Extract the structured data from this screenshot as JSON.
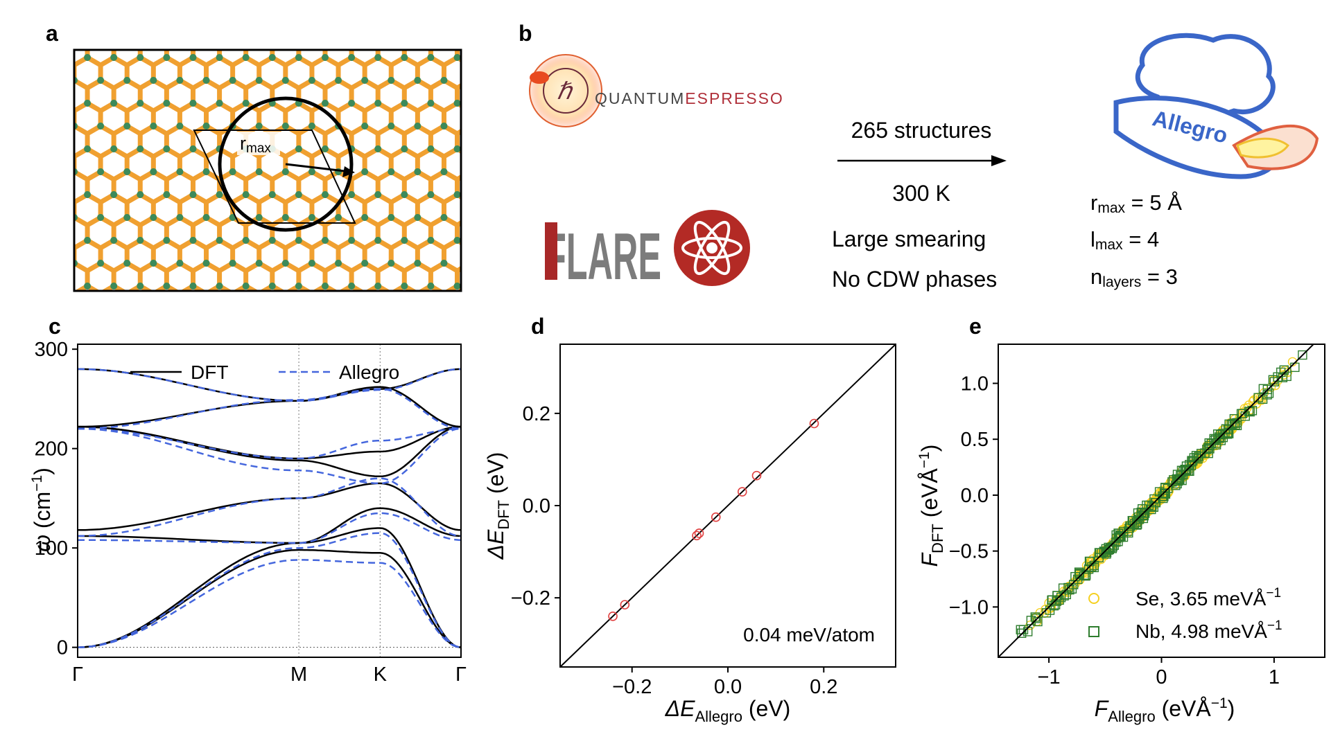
{
  "panel_labels": {
    "a": "a",
    "b": "b",
    "c": "c",
    "d": "d",
    "e": "e"
  },
  "panel_a": {
    "radius_label": "r",
    "radius_sub": "max",
    "colors": {
      "selenium": "#f0a030",
      "niobium": "#3c8a5a"
    }
  },
  "panel_b": {
    "qe_logo_text_1": "QUANTUM",
    "qe_logo_text_2": "ESPRESSO",
    "qe_logo_symbol": "ℏ",
    "flare_logo_text": "FLARE",
    "structures": "265 structures",
    "temperature": "300 K",
    "condition_1": "Large smearing",
    "condition_2": "No CDW phases",
    "allegro_logo_text": "Allegro",
    "hyper_r": {
      "sym": "r",
      "sub": "max",
      "val": " = 5 Å"
    },
    "hyper_l": {
      "sym": "l",
      "sub": "max",
      "val": " = 4"
    },
    "hyper_n": {
      "sym": "n",
      "sub": "layers",
      "val": " = 3"
    }
  },
  "chart_data": [
    {
      "id": "c",
      "type": "line",
      "title": "",
      "ylabel_sym": "ω",
      "ylabel_unit": "(cm",
      "ylabel_exp": "−1",
      "ylabel_close": ")",
      "ylim": [
        -10,
        305
      ],
      "yticks": [
        0,
        100,
        200,
        300
      ],
      "xtick_labels": [
        "Γ",
        "M",
        "K",
        "Γ"
      ],
      "xtick_pos": [
        0,
        0.577,
        0.789,
        1.0
      ],
      "legend": {
        "dft": "DFT",
        "allegro": "Allegro",
        "placement": "top"
      },
      "colors": {
        "dft": "#000000",
        "allegro": "#4466dd"
      },
      "bands_dft": [
        [
          [
            0,
            280
          ],
          [
            0.577,
            248
          ],
          [
            0.789,
            260
          ],
          [
            1,
            280
          ]
        ],
        [
          [
            0,
            222
          ],
          [
            0.577,
            248
          ],
          [
            0.789,
            262
          ],
          [
            1,
            222
          ]
        ],
        [
          [
            0,
            222
          ],
          [
            0.577,
            190
          ],
          [
            0.789,
            197
          ],
          [
            1,
            222
          ]
        ],
        [
          [
            0,
            222
          ],
          [
            0.577,
            188
          ],
          [
            0.789,
            172
          ],
          [
            1,
            222
          ]
        ],
        [
          [
            0,
            118
          ],
          [
            0.577,
            150
          ],
          [
            0.789,
            165
          ],
          [
            1,
            118
          ]
        ],
        [
          [
            0,
            112
          ],
          [
            0.577,
            105
          ],
          [
            0.789,
            140
          ],
          [
            1,
            112
          ]
        ],
        [
          [
            0,
            0
          ],
          [
            0.577,
            105
          ],
          [
            0.789,
            120
          ],
          [
            1,
            0
          ]
        ],
        [
          [
            0,
            0
          ],
          [
            0.577,
            98
          ],
          [
            0.789,
            95
          ],
          [
            1,
            0
          ]
        ]
      ],
      "bands_allegro": [
        [
          [
            0,
            280
          ],
          [
            0.577,
            248
          ],
          [
            0.789,
            259
          ],
          [
            1,
            280
          ]
        ],
        [
          [
            0,
            220
          ],
          [
            0.577,
            249
          ],
          [
            0.789,
            260
          ],
          [
            1,
            220
          ]
        ],
        [
          [
            0,
            220
          ],
          [
            0.577,
            190
          ],
          [
            0.789,
            208
          ],
          [
            1,
            220
          ]
        ],
        [
          [
            0,
            220
          ],
          [
            0.577,
            178
          ],
          [
            0.789,
            165
          ],
          [
            1,
            220
          ]
        ],
        [
          [
            0,
            112
          ],
          [
            0.577,
            150
          ],
          [
            0.789,
            170
          ],
          [
            1,
            112
          ]
        ],
        [
          [
            0,
            108
          ],
          [
            0.577,
            105
          ],
          [
            0.789,
            135
          ],
          [
            1,
            108
          ]
        ],
        [
          [
            0,
            0
          ],
          [
            0.577,
            100
          ],
          [
            0.789,
            115
          ],
          [
            1,
            0
          ]
        ],
        [
          [
            0,
            0
          ],
          [
            0.577,
            88
          ],
          [
            0.789,
            85
          ],
          [
            1,
            0
          ]
        ]
      ]
    },
    {
      "id": "d",
      "type": "scatter",
      "xlabel_sym": "ΔE",
      "xlabel_sub": "Allegro",
      "xlabel_unit": " (eV)",
      "ylabel_sym": "ΔE",
      "ylabel_sub": "DFT",
      "ylabel_unit": " (eV)",
      "xlim": [
        -0.35,
        0.35
      ],
      "ylim": [
        -0.35,
        0.35
      ],
      "xticks": [
        -0.2,
        0.0,
        0.2
      ],
      "yticks": [
        -0.2,
        0.0,
        0.2
      ],
      "xtick_labels": [
        "−0.2",
        "0.0",
        "0.2"
      ],
      "ytick_labels": [
        "−0.2",
        "0.0",
        "0.2"
      ],
      "annotation": "0.04 meV/atom",
      "marker_color": "#e04040",
      "points": [
        [
          -0.24,
          -0.24
        ],
        [
          -0.215,
          -0.215
        ],
        [
          -0.065,
          -0.065
        ],
        [
          -0.06,
          -0.06
        ],
        [
          -0.025,
          -0.025
        ],
        [
          0.03,
          0.03
        ],
        [
          0.06,
          0.065
        ],
        [
          0.18,
          0.178
        ]
      ]
    },
    {
      "id": "e",
      "type": "scatter",
      "xlabel_sym": "F",
      "xlabel_sub": "Allegro",
      "xlabel_unit": " (eVÅ",
      "xlabel_exp": "−1",
      "xlabel_close": ")",
      "ylabel_sym": "F",
      "ylabel_sub": "DFT",
      "ylabel_unit": " (eVÅ",
      "ylabel_exp": "−1",
      "ylabel_close": ")",
      "xlim": [
        -1.45,
        1.45
      ],
      "ylim": [
        -1.45,
        1.35
      ],
      "xticks": [
        -1,
        0,
        1
      ],
      "yticks": [
        -1.0,
        -0.5,
        0.0,
        0.5,
        1.0
      ],
      "xtick_labels": [
        "−1",
        "0",
        "1"
      ],
      "ytick_labels": [
        "−1.0",
        "−0.5",
        "0.0",
        "0.5",
        "1.0"
      ],
      "series": [
        {
          "name": "Se, 3.65 meVÅ",
          "exp": "−1",
          "marker": "circle",
          "color": "#f5d020"
        },
        {
          "name": "Nb, 4.98 meVÅ",
          "exp": "−1",
          "marker": "square",
          "color": "#2e7d2e"
        }
      ]
    }
  ]
}
